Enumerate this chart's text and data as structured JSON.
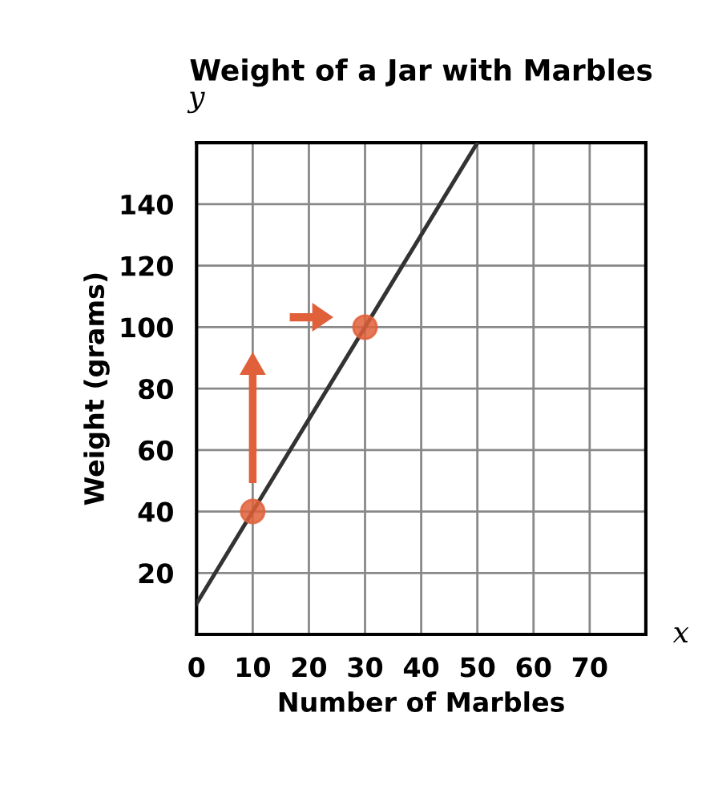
{
  "chart_data": {
    "type": "line",
    "title": "Weight of a Jar with Marbles",
    "xlabel": "Number of Marbles",
    "ylabel": "Weight (grams)",
    "annotations": [
      "y",
      "x"
    ],
    "series": [
      {
        "color": "#333333",
        "x": [
          0,
          50
        ],
        "values": [
          10,
          160
        ]
      },
      {
        "type": "scatter",
        "color": "#e0603a",
        "x": [
          10,
          30
        ],
        "values": [
          40,
          100
        ]
      }
    ],
    "xlim": [
      0,
      80
    ],
    "ylim": [
      0,
      160
    ],
    "xticks": [
      {
        "value": 0,
        "label": "0"
      },
      10,
      20,
      30,
      40,
      50,
      60,
      70,
      {
        "value": 80,
        "label": null
      }
    ],
    "yticks": [
      {
        "value": 0,
        "label": null
      },
      20,
      40,
      60,
      80,
      100,
      120,
      140,
      {
        "value": 160,
        "label": null
      }
    ],
    "grid": true,
    "legend": false
  }
}
